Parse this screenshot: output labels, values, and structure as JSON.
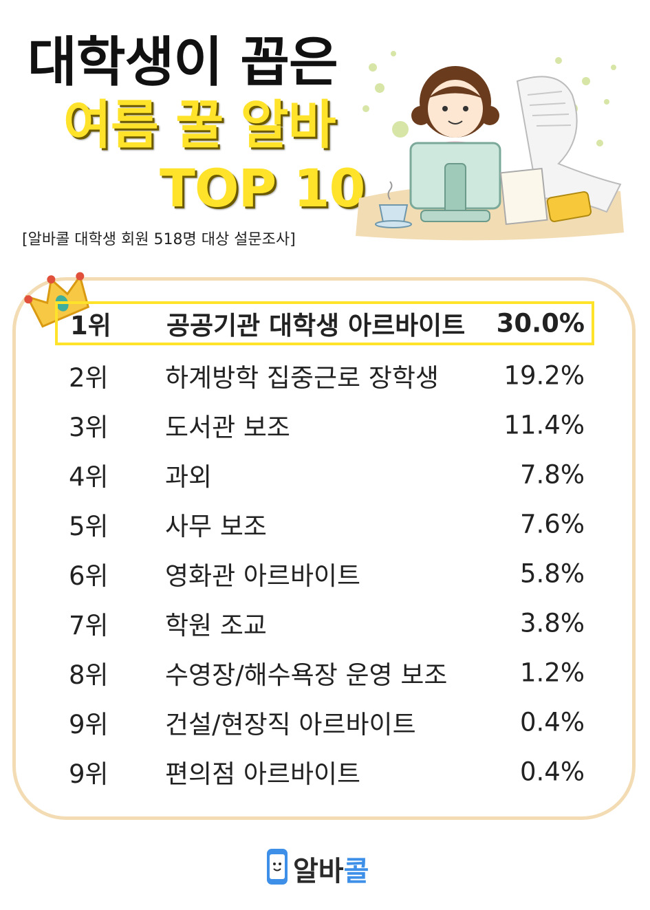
{
  "header": {
    "title_line1": "대학생이 꼽은",
    "title_line2": "여름 꿀 알바",
    "title_line3": "TOP 10",
    "subtitle": "[알바콜 대학생 회원 518명 대상 설문조사]"
  },
  "colors": {
    "title_yellow": "#ffe32a",
    "panel_border": "#f3dcb3",
    "highlight_border": "#ffe32a",
    "logo_blue": "#3d8fe8"
  },
  "ranking": [
    {
      "rank": "1위",
      "job": "공공기관 대학생 아르바이트",
      "percent": "30.0%"
    },
    {
      "rank": "2위",
      "job": "하계방학 집중근로 장학생",
      "percent": "19.2%"
    },
    {
      "rank": "3위",
      "job": "도서관 보조",
      "percent": "11.4%"
    },
    {
      "rank": "4위",
      "job": "과외",
      "percent": "7.8%"
    },
    {
      "rank": "5위",
      "job": "사무 보조",
      "percent": "7.6%"
    },
    {
      "rank": "6위",
      "job": "영화관 아르바이트",
      "percent": "5.8%"
    },
    {
      "rank": "7위",
      "job": "학원 조교",
      "percent": "3.8%"
    },
    {
      "rank": "8위",
      "job": "수영장/해수욕장 운영 보조",
      "percent": "1.2%"
    },
    {
      "rank": "9위",
      "job": "건설/현장직 아르바이트",
      "percent": "0.4%"
    },
    {
      "rank": "9위",
      "job": "편의점 아르바이트",
      "percent": "0.4%"
    }
  ],
  "logo": {
    "text_main": "알바",
    "text_accent": "콜",
    "icon": "phone-smile-icon"
  },
  "illustration": {
    "icon": "girl-at-computer-illustration"
  },
  "decoration": {
    "icon": "crown-icon"
  }
}
